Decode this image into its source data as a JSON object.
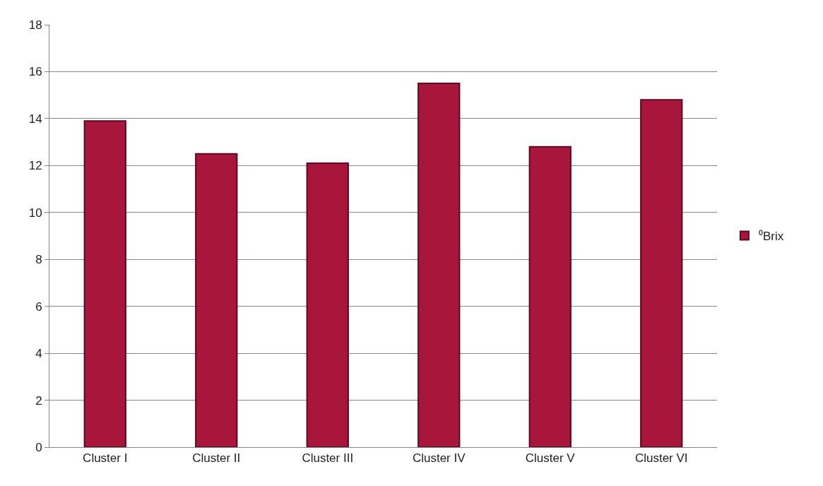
{
  "chart_data": {
    "type": "bar",
    "categories": [
      "Cluster I",
      "Cluster II",
      "Cluster III",
      "Cluster IV",
      "Cluster V",
      "Cluster VI"
    ],
    "series": [
      {
        "name": "⁰Brix",
        "color": "#a8163c",
        "values": [
          13.9,
          12.5,
          12.1,
          15.5,
          12.8,
          14.8
        ]
      }
    ],
    "ylim": [
      0,
      18
    ],
    "yticks": [
      0,
      2,
      4,
      6,
      8,
      10,
      12,
      14,
      16,
      18
    ],
    "grid": "y",
    "legend": "right"
  }
}
